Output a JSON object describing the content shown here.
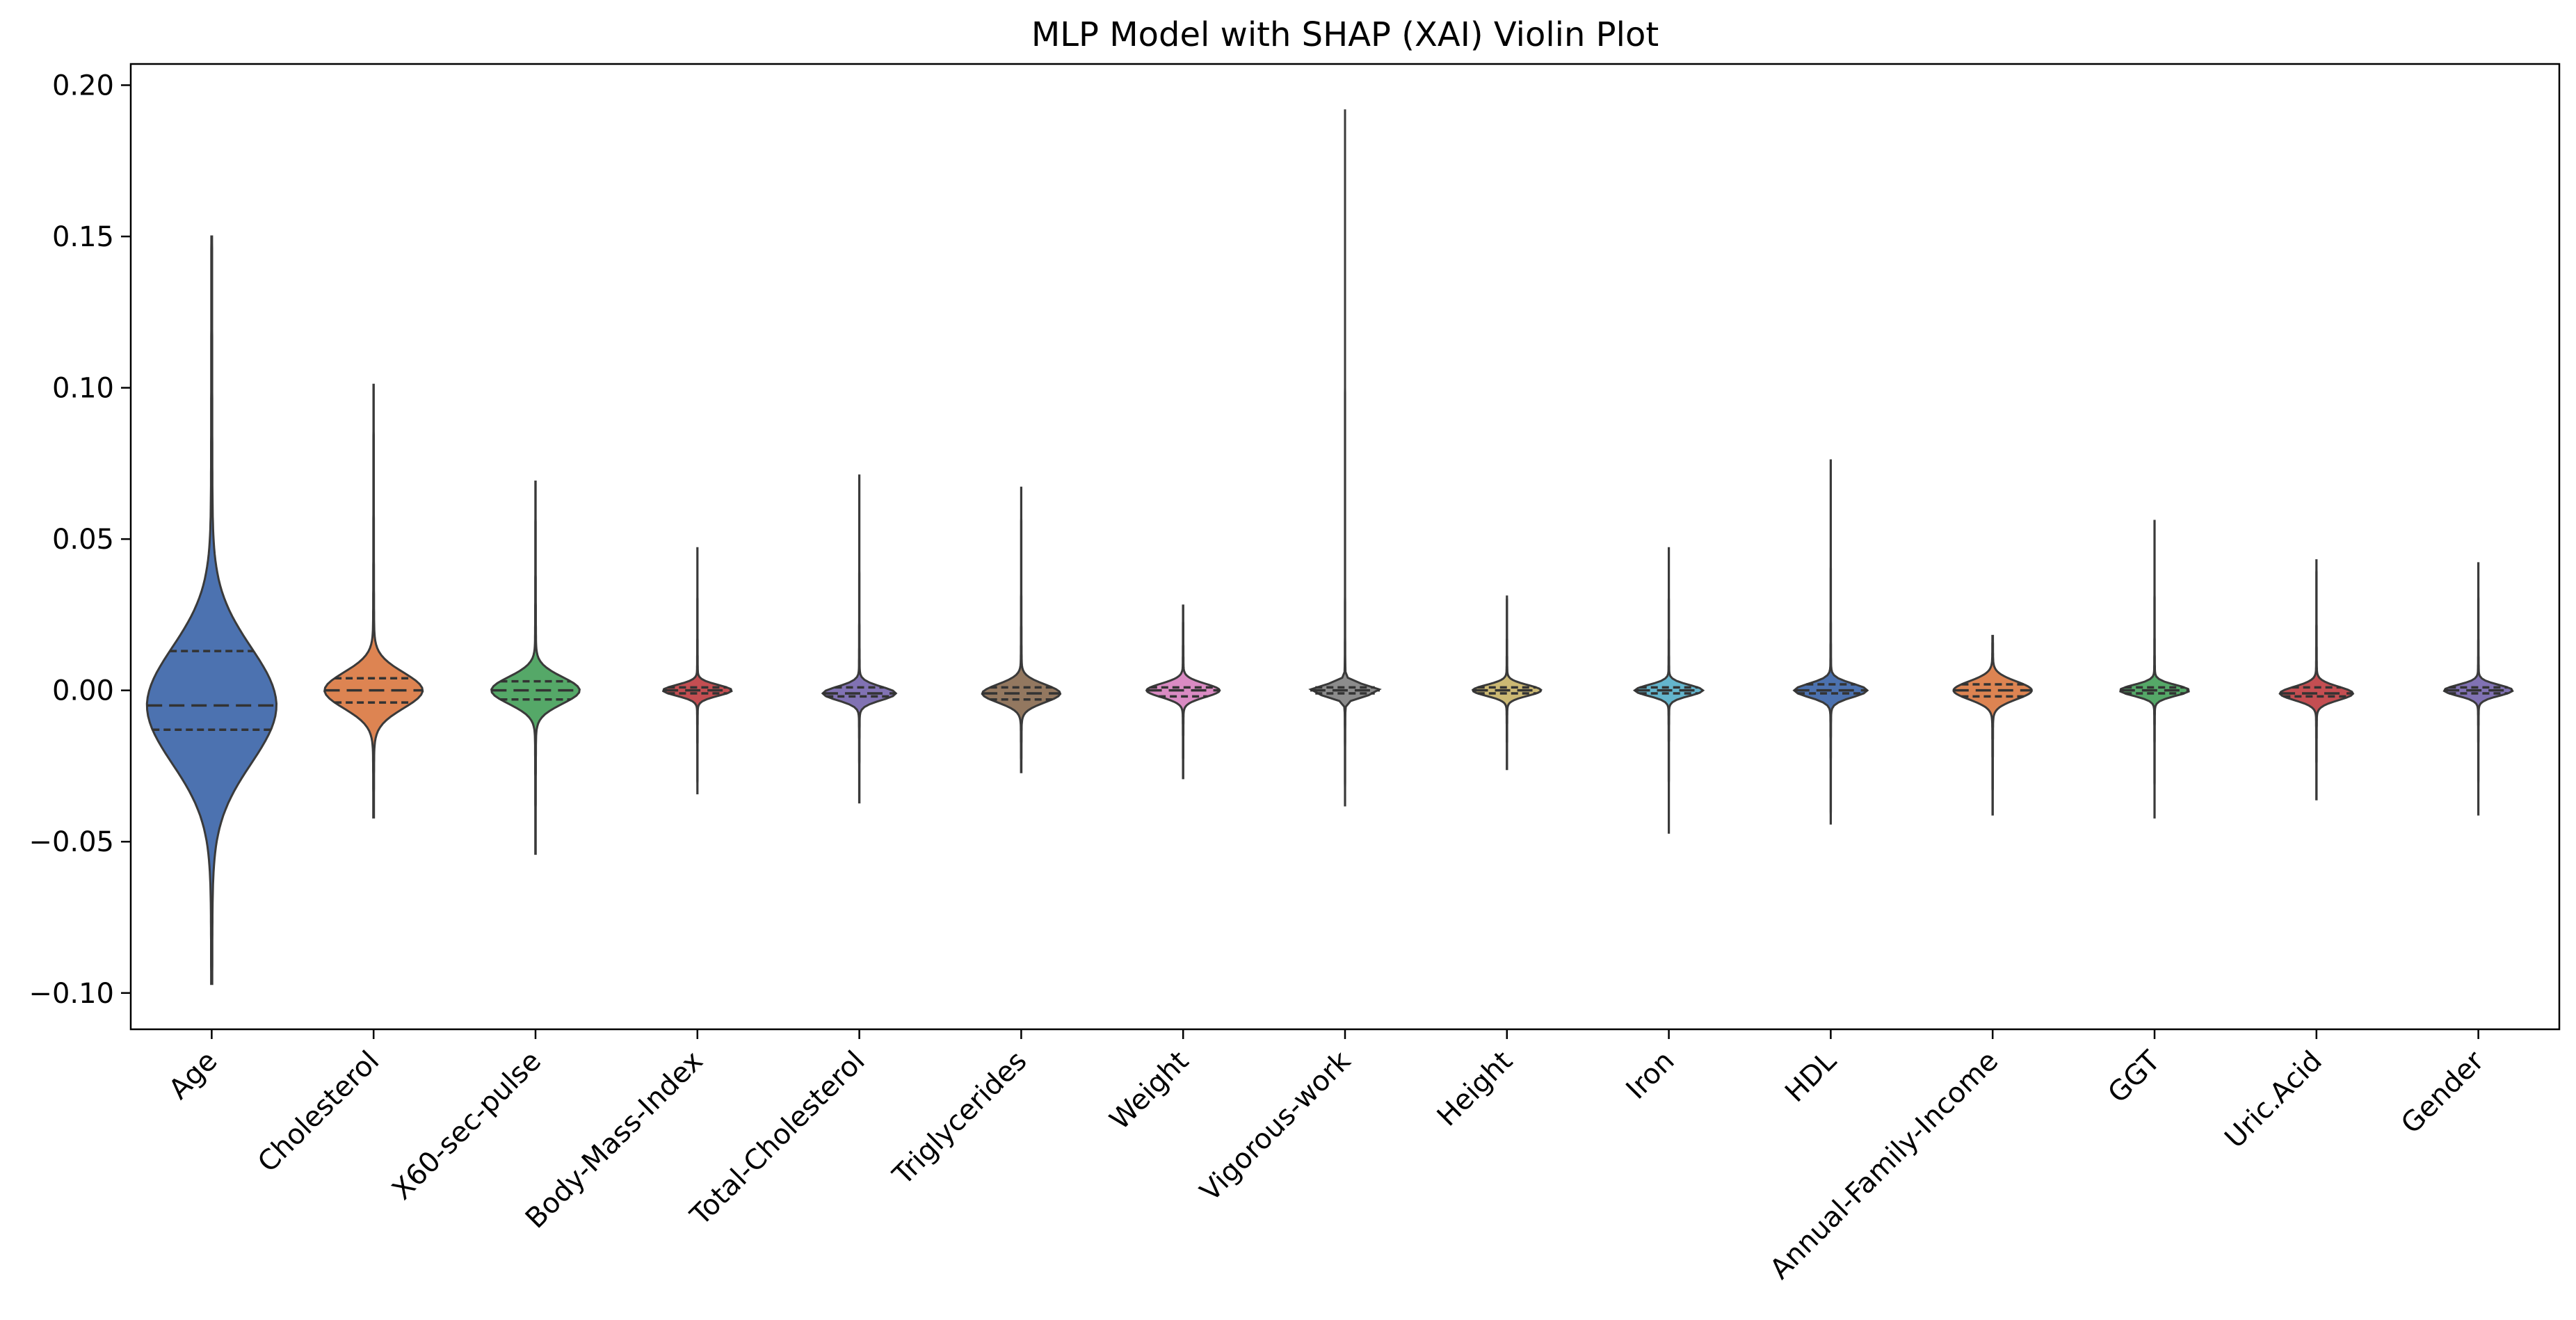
{
  "chart_data": {
    "type": "violin",
    "title": "MLP Model with SHAP (XAI) Violin Plot",
    "xlabel": "",
    "ylabel": "",
    "ylim": [
      -0.112,
      0.207
    ],
    "yticks": [
      -0.1,
      -0.05,
      0.0,
      0.05,
      0.1,
      0.15,
      0.2
    ],
    "ytick_labels": [
      "−0.10",
      "−0.05",
      "0.00",
      "0.05",
      "0.10",
      "0.15",
      "0.20"
    ],
    "grid": false,
    "legend": "none",
    "inner": "quartile",
    "categories": [
      "Age",
      "Cholesterol",
      "X60-sec-pulse",
      "Body-Mass-Index",
      "Total-Cholesterol",
      "Triglycerides",
      "Weight",
      "Vigorous-work",
      "Height",
      "Iron",
      "HDL",
      "Annual-Family-Income",
      "GGT",
      "Uric.Acid",
      "Gender"
    ],
    "colors": [
      "#4c72b0",
      "#dd8452",
      "#55a868",
      "#c44e52",
      "#8172b3",
      "#937860",
      "#da8bc3",
      "#8c8c8c",
      "#ccb974",
      "#64b5cd",
      "#4c72b0",
      "#dd8452",
      "#55a868",
      "#c44e52",
      "#8172b3"
    ],
    "series": [
      {
        "name": "Age",
        "min": -0.097,
        "q1": -0.013,
        "median": -0.005,
        "q3": 0.013,
        "max": 0.15
      },
      {
        "name": "Cholesterol",
        "min": -0.042,
        "q1": -0.004,
        "median": 0.0,
        "q3": 0.004,
        "max": 0.101
      },
      {
        "name": "X60-sec-pulse",
        "min": -0.054,
        "q1": -0.003,
        "median": 0.0,
        "q3": 0.003,
        "max": 0.069
      },
      {
        "name": "Body-Mass-Index",
        "min": -0.034,
        "q1": -0.001,
        "median": 0.0,
        "q3": 0.001,
        "max": 0.047
      },
      {
        "name": "Total-Cholesterol",
        "min": -0.037,
        "q1": -0.002,
        "median": -0.001,
        "q3": 0.001,
        "max": 0.071
      },
      {
        "name": "Triglycerides",
        "min": -0.027,
        "q1": -0.003,
        "median": -0.001,
        "q3": 0.001,
        "max": 0.067
      },
      {
        "name": "Weight",
        "min": -0.029,
        "q1": -0.002,
        "median": 0.0,
        "q3": 0.001,
        "max": 0.028
      },
      {
        "name": "Vigorous-work",
        "min": -0.038,
        "q1": -0.001,
        "median": 0.0,
        "q3": 0.001,
        "max": 0.192
      },
      {
        "name": "Height",
        "min": -0.026,
        "q1": -0.001,
        "median": 0.0,
        "q3": 0.001,
        "max": 0.031
      },
      {
        "name": "Iron",
        "min": -0.047,
        "q1": -0.001,
        "median": 0.0,
        "q3": 0.001,
        "max": 0.047
      },
      {
        "name": "HDL",
        "min": -0.044,
        "q1": -0.001,
        "median": 0.0,
        "q3": 0.002,
        "max": 0.076
      },
      {
        "name": "Annual-Family-Income",
        "min": -0.041,
        "q1": -0.002,
        "median": 0.0,
        "q3": 0.002,
        "max": 0.018
      },
      {
        "name": "GGT",
        "min": -0.042,
        "q1": -0.001,
        "median": 0.0,
        "q3": 0.001,
        "max": 0.056
      },
      {
        "name": "Uric.Acid",
        "min": -0.036,
        "q1": -0.002,
        "median": -0.001,
        "q3": 0.001,
        "max": 0.043
      },
      {
        "name": "Gender",
        "min": -0.041,
        "q1": -0.001,
        "median": 0.0,
        "q3": 0.001,
        "max": 0.042
      }
    ]
  }
}
